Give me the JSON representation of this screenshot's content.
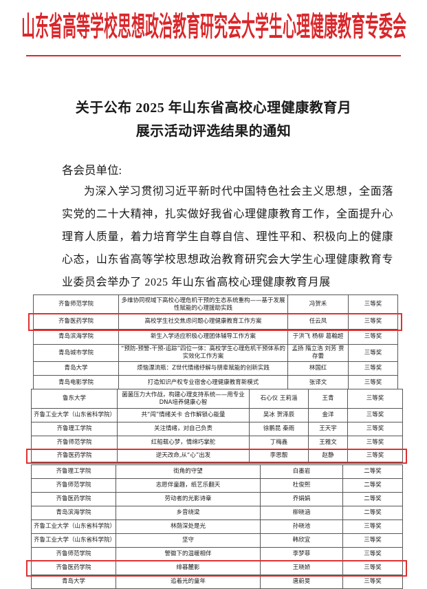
{
  "header": {
    "org": "山东省高等学校思想政治教育研究会大学生心理健康教育专委会"
  },
  "notice": {
    "title": [
      "关于公布 2025 年山东省高校心理健康教育月",
      "展示活动评选结果的通知"
    ],
    "salutation": "各会员单位:",
    "body": "为深入学习贯彻习近平新时代中国特色社会主义思想，全面落实党的二十大精神，扎实做好我省心理健康教育工作，全面提升心理育人质量，着力培育学生自尊自信、理性平和、积极向上的健康心态，山东省高等学校思想政治教育研究会大学生心理健康教育专业委员会举办了 2025 年山东省高校心理健康教育月展"
  },
  "tables": [
    {
      "rows": [
        [
          "齐鲁师范学院",
          "多维协同视域下高校心理危机干预的生态系统重构——基于发展性赋能的心理援助实践",
          "冯贺禾",
          "三等奖"
        ],
        [
          "齐鲁医药学院",
          "高校学生社交焦虑问题心理健康教育工作方案",
          "任云凤",
          "三等奖"
        ],
        [
          "青岛滨海学院",
          "新生入学适应积极心理团体辅导工作方案",
          "于洪飞 杨柳 葛翰超",
          "三等奖"
        ],
        [
          "青岛城市学院",
          "“预防-预警-干预-追踪”四位一体：高校学生心理危机干预体系的实效化工作方案",
          "孟扬 隋立浩 刘芳 贾存蕾",
          "三等奖"
        ],
        [
          "青岛大学",
          "烦恼漂流瓶：Z世代情绪纾解与朋辈赋能的创新实践",
          "林国红",
          "三等奖"
        ],
        [
          "青岛电影学院",
          "打造知识产权专业宿舍心理健康教育新模式",
          "张译文",
          "三等奖"
        ]
      ],
      "highlighted_rows": [
        1
      ]
    },
    {
      "rows": [
        [
          "鲁东大学",
          "菌菌压力大作战，构建心理支持系统——用专业DNA培养健康心智",
          "石心仪 王莉淄",
          "王青",
          "三等奖"
        ],
        [
          "齐鲁工业大学（山东省科学院）",
          "共“闯”情绪关卡 合作解锁心能量",
          "吴冰 贺泽辰",
          "金洋",
          "三等奖"
        ],
        [
          "齐鲁理工学院",
          "关注情绪，对自己负责",
          "徐鹏昆 秦雨",
          "王天宇",
          "三等奖"
        ],
        [
          "齐鲁师范学院",
          "红船载心梦，情绵巧掌舵",
          "丁梅鑫",
          "王雅文",
          "三等奖"
        ],
        [
          "齐鲁医药学院",
          "逆天改命,从“心”出发",
          "李思靓",
          "赵静",
          "三等奖"
        ]
      ],
      "highlighted_rows": [
        4
      ]
    },
    {
      "rows": [
        [
          "齐鲁理工学院",
          "街角的守望",
          "白墨岩",
          "二等奖"
        ],
        [
          "齐鲁师范学院",
          "志愿伴童趣，纸艺乐翻天",
          "杜俊熙",
          "二等奖"
        ],
        [
          "齐鲁医药学院",
          "劳动者的光影诗章",
          "乔娟娟",
          "二等奖"
        ],
        [
          "青岛滨海学院",
          "乡音绕梁",
          "柳晓涵",
          "二等奖"
        ],
        [
          "齐鲁工业大学（山东省科学院）",
          "林荫深处是光",
          "孙晓池",
          "三等奖"
        ],
        [
          "齐鲁工业大学（山东省科学院）",
          "坚守",
          "韩欣宜",
          "三等奖"
        ],
        [
          "齐鲁师范学院",
          "警徽下的温暖相伴",
          "李梦菲",
          "三等奖"
        ],
        [
          "齐鲁医药学院",
          "绯暮麓影",
          "王晓娇",
          "三等奖"
        ],
        [
          "青岛大学",
          "追着光的童年",
          "唐蔚旻",
          "三等奖"
        ]
      ],
      "highlighted_rows": [
        7
      ]
    }
  ]
}
